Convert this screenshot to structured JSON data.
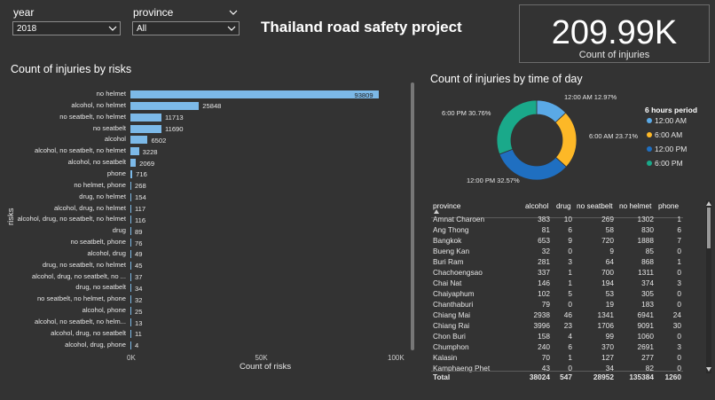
{
  "slicers": {
    "year": {
      "label": "year",
      "value": "2018"
    },
    "province": {
      "label": "province",
      "value": "All"
    }
  },
  "title": "Thailand road safety project",
  "card": {
    "value": "209.99K",
    "label": "Count of injuries"
  },
  "bar_chart": {
    "title": "Count of injuries by risks",
    "chart_data": {
      "type": "bar",
      "orientation": "horizontal",
      "title": "Count of injuries by risks",
      "xlabel": "Count of risks",
      "ylabel": "risks",
      "xlim": [
        0,
        100000
      ],
      "x_ticks": [
        "0K",
        "50K",
        "100K"
      ],
      "color": "#7cb9e8",
      "categories": [
        "no helmet",
        "alcohol, no helmet",
        "no seatbelt, no helmet",
        "no seatbelt",
        "alcohol",
        "alcohol, no seatbelt, no helmet",
        "alcohol, no seatbelt",
        "phone",
        "no helmet, phone",
        "drug, no helmet",
        "alcohol, drug, no helmet",
        "alcohol, drug, no seatbelt, no helmet",
        "drug",
        "no seatbelt, phone",
        "alcohol, drug",
        "drug, no seatbelt, no helmet",
        "alcohol, drug, no seatbelt, no ...",
        "drug, no seatbelt",
        "no seatbelt, no helmet, phone",
        "alcohol, phone",
        "alcohol, no seatbelt, no helm...",
        "alcohol, drug, no seatbelt",
        "alcohol, drug, phone"
      ],
      "values": [
        93809,
        25848,
        11713,
        11690,
        6502,
        3228,
        2069,
        716,
        268,
        154,
        117,
        116,
        89,
        76,
        49,
        45,
        37,
        34,
        32,
        25,
        13,
        11,
        4
      ]
    }
  },
  "donut_chart": {
    "title": "Count of injuries by time of day",
    "legend_title": "6 hours period",
    "chart_data": {
      "type": "pie",
      "style": "donut",
      "title": "Count of injuries by time of day",
      "legend_title": "6 hours period",
      "legend_position": "right",
      "categories": [
        "12:00 AM",
        "6:00 AM",
        "12:00 PM",
        "6:00 PM"
      ],
      "values": [
        12.97,
        23.71,
        32.57,
        30.76
      ],
      "slice_labels": [
        "12:00 AM 12.97%",
        "6:00 AM 23.71%",
        "12:00 PM 32.57%",
        "6:00 PM 30.76%"
      ],
      "colors": [
        "#5aa9e6",
        "#fdb827",
        "#1f6fc1",
        "#1aa98a"
      ]
    }
  },
  "table": {
    "columns": [
      "province",
      "alcohol",
      "drug",
      "no seatbelt",
      "no helmet",
      "phone"
    ],
    "rows": [
      [
        "Amnat Charoen",
        "383",
        "10",
        "269",
        "1302",
        "1"
      ],
      [
        "Ang Thong",
        "81",
        "6",
        "58",
        "830",
        "6"
      ],
      [
        "Bangkok",
        "653",
        "9",
        "720",
        "1888",
        "7"
      ],
      [
        "Bueng Kan",
        "32",
        "0",
        "9",
        "85",
        "0"
      ],
      [
        "Buri Ram",
        "281",
        "3",
        "64",
        "868",
        "1"
      ],
      [
        "Chachoengsao",
        "337",
        "1",
        "700",
        "1311",
        "0"
      ],
      [
        "Chai Nat",
        "146",
        "1",
        "194",
        "374",
        "3"
      ],
      [
        "Chaiyaphum",
        "102",
        "5",
        "53",
        "305",
        "0"
      ],
      [
        "Chanthaburi",
        "79",
        "0",
        "19",
        "183",
        "0"
      ],
      [
        "Chiang Mai",
        "2938",
        "46",
        "1341",
        "6941",
        "24"
      ],
      [
        "Chiang Rai",
        "3996",
        "23",
        "1706",
        "9091",
        "30"
      ],
      [
        "Chon Buri",
        "158",
        "4",
        "99",
        "1060",
        "0"
      ],
      [
        "Chumphon",
        "240",
        "6",
        "370",
        "2691",
        "3"
      ],
      [
        "Kalasin",
        "70",
        "1",
        "127",
        "277",
        "0"
      ],
      [
        "Kamphaeng Phet",
        "43",
        "0",
        "34",
        "82",
        "0"
      ]
    ],
    "total": [
      "Total",
      "38024",
      "547",
      "28952",
      "135384",
      "1260"
    ]
  },
  "colors": {
    "background": "#333333",
    "bar": "#7cb9e8"
  }
}
